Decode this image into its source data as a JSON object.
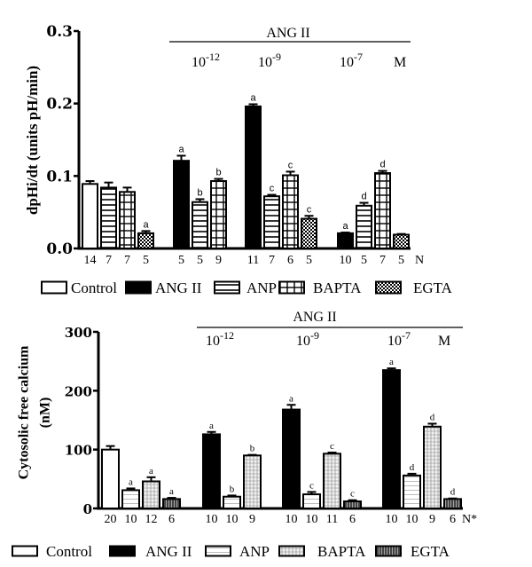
{
  "chart_data": [
    {
      "type": "bar",
      "id": "top",
      "title": "",
      "xlabel": "",
      "ylabel": "dpHi/dt (units pH/min)",
      "ylim": [
        0,
        0.3
      ],
      "yticks": [
        0.0,
        0.1,
        0.2,
        0.3
      ],
      "ytick_labels": [
        "0.0",
        "0.1",
        "0.2",
        "0.3"
      ],
      "grid": false,
      "legend_position": "bottom",
      "treatment_header": "ANG II",
      "concentration_unit": "M",
      "n_axis_label": "N",
      "groups": [
        {
          "name": "baseline",
          "concentration": "",
          "bars": [
            {
              "series": "Control",
              "value": 0.089,
              "error": 0.004,
              "sig": "",
              "n": "14"
            },
            {
              "series": "ANP",
              "value": 0.084,
              "error": 0.007,
              "sig": "",
              "n": "7"
            },
            {
              "series": "BAPTA",
              "value": 0.078,
              "error": 0.006,
              "sig": "",
              "n": "7"
            },
            {
              "series": "EGTA",
              "value": 0.021,
              "error": 0.003,
              "sig": "a",
              "n": "5"
            }
          ]
        },
        {
          "name": "ang-1e-12",
          "concentration": "10",
          "exponent": "-12",
          "bars": [
            {
              "series": "ANG II",
              "value": 0.121,
              "error": 0.007,
              "sig": "a",
              "n": "5"
            },
            {
              "series": "ANP",
              "value": 0.064,
              "error": 0.004,
              "sig": "b",
              "n": "5"
            },
            {
              "series": "BAPTA",
              "value": 0.093,
              "error": 0.003,
              "sig": "b",
              "n": "9"
            }
          ]
        },
        {
          "name": "ang-1e-9",
          "concentration": "10",
          "exponent": "-9",
          "bars": [
            {
              "series": "ANG II",
              "value": 0.196,
              "error": 0.003,
              "sig": "a",
              "n": "11"
            },
            {
              "series": "ANP",
              "value": 0.072,
              "error": 0.002,
              "sig": "c",
              "n": "7"
            },
            {
              "series": "BAPTA",
              "value": 0.101,
              "error": 0.005,
              "sig": "c",
              "n": "6"
            },
            {
              "series": "EGTA",
              "value": 0.041,
              "error": 0.004,
              "sig": "c",
              "n": "5"
            }
          ]
        },
        {
          "name": "ang-1e-7",
          "concentration": "10",
          "exponent": "-7",
          "bars": [
            {
              "series": "ANG II",
              "value": 0.021,
              "error": 0.001,
              "sig": "a",
              "n": "10"
            },
            {
              "series": "ANP",
              "value": 0.059,
              "error": 0.004,
              "sig": "d",
              "n": "5"
            },
            {
              "series": "BAPTA",
              "value": 0.104,
              "error": 0.003,
              "sig": "d",
              "n": "7"
            },
            {
              "series": "EGTA",
              "value": 0.019,
              "error": 0.001,
              "sig": "",
              "n": "5"
            }
          ]
        }
      ],
      "legend": [
        "Control",
        "ANG II",
        "ANP",
        "BAPTA",
        "EGTA"
      ]
    },
    {
      "type": "bar",
      "id": "bottom",
      "title": "",
      "xlabel": "",
      "ylabel": "Cytosolic free calcium",
      "ylabel_line2": "(nM)",
      "ylim": [
        0,
        300
      ],
      "yticks": [
        0,
        100,
        200,
        300
      ],
      "ytick_labels": [
        "0",
        "100",
        "200",
        "300"
      ],
      "grid": false,
      "legend_position": "bottom",
      "treatment_header": "ANG II",
      "concentration_unit": "M",
      "n_axis_label": "N*",
      "groups": [
        {
          "name": "baseline",
          "concentration": "",
          "bars": [
            {
              "series": "Control",
              "value": 100,
              "error": 6,
              "sig": "",
              "n": "20"
            },
            {
              "series": "ANP",
              "value": 31,
              "error": 3,
              "sig": "a",
              "n": "10"
            },
            {
              "series": "BAPTA",
              "value": 46,
              "error": 7,
              "sig": "a",
              "n": "12"
            },
            {
              "series": "EGTA",
              "value": 16,
              "error": 2,
              "sig": "a",
              "n": "6"
            }
          ]
        },
        {
          "name": "ang-1e-12",
          "concentration": "10",
          "exponent": "-12",
          "bars": [
            {
              "series": "ANG II",
              "value": 126,
              "error": 4,
              "sig": "a",
              "n": "10"
            },
            {
              "series": "ANP",
              "value": 20,
              "error": 2,
              "sig": "b",
              "n": "10"
            },
            {
              "series": "BAPTA",
              "value": 90,
              "error": 1,
              "sig": "b",
              "n": "9"
            }
          ]
        },
        {
          "name": "ang-1e-9",
          "concentration": "10",
          "exponent": "-9",
          "bars": [
            {
              "series": "ANG II",
              "value": 168,
              "error": 8,
              "sig": "a",
              "n": "10"
            },
            {
              "series": "ANP",
              "value": 24,
              "error": 4,
              "sig": "c",
              "n": "10"
            },
            {
              "series": "BAPTA",
              "value": 93,
              "error": 2,
              "sig": "c",
              "n": "11"
            },
            {
              "series": "EGTA",
              "value": 12,
              "error": 2,
              "sig": "c",
              "n": "6"
            }
          ]
        },
        {
          "name": "ang-1e-7",
          "concentration": "10",
          "exponent": "-7",
          "bars": [
            {
              "series": "ANG II",
              "value": 235,
              "error": 3,
              "sig": "a",
              "n": "10"
            },
            {
              "series": "ANP",
              "value": 56,
              "error": 3,
              "sig": "d",
              "n": "10"
            },
            {
              "series": "BAPTA",
              "value": 139,
              "error": 5,
              "sig": "d",
              "n": "9"
            },
            {
              "series": "EGTA",
              "value": 16,
              "error": 1,
              "sig": "d",
              "n": "6"
            }
          ]
        }
      ],
      "legend": [
        "Control",
        "ANG II",
        "ANP",
        "BAPTA",
        "EGTA"
      ]
    }
  ]
}
